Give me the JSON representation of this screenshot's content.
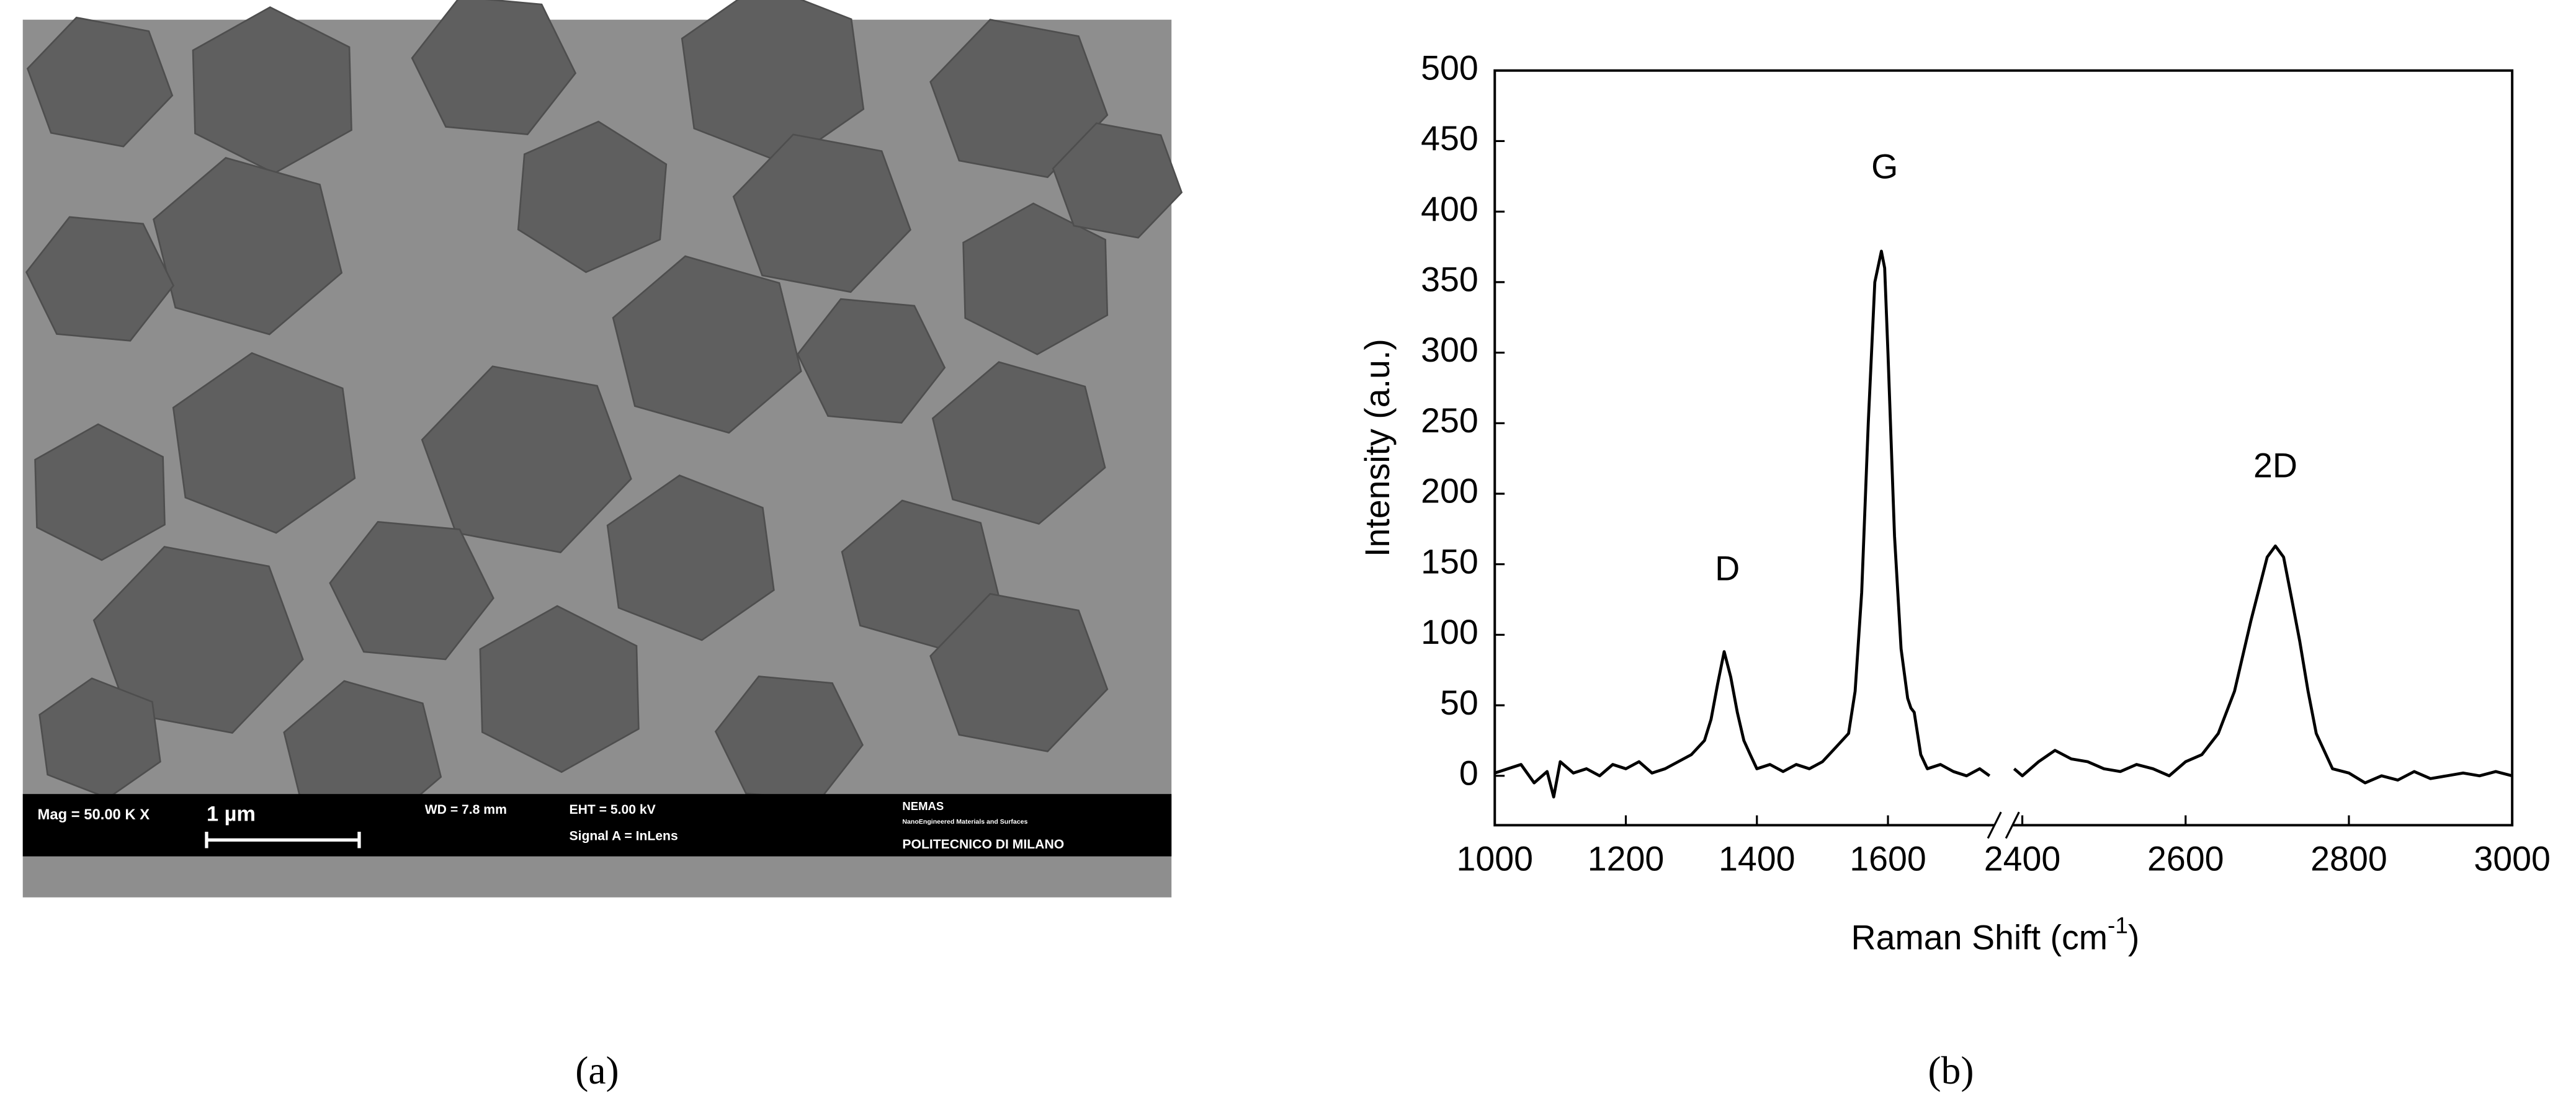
{
  "sem_image": {
    "info_bar": {
      "mag": "Mag = 50.00 K X",
      "scale": "1 µm",
      "wd": "WD = 7.8 mm",
      "eht": "EHT = 5.00 kV",
      "signal": "Signal A = InLens",
      "lab": "NEMAS",
      "lab_sub": "NanoEngineered Materials and Surfaces",
      "institution": "POLITECNICO DI MILANO"
    }
  },
  "captions": [
    "(a)",
    "(b)"
  ],
  "chart_data": {
    "type": "line",
    "xlabel": [
      "Raman Shift (cm",
      "-1",
      ")"
    ],
    "ylabel": "Intensity (a.u.)",
    "xlim": [
      1000,
      3000
    ],
    "xbreak": [
      1760,
      2390
    ],
    "ylim": [
      -35,
      500
    ],
    "xticks": [
      1000,
      1200,
      1400,
      1600,
      2400,
      2600,
      2800,
      3000
    ],
    "yticks": [
      0,
      50,
      100,
      150,
      200,
      250,
      300,
      350,
      400,
      450,
      500
    ],
    "color": "#000000",
    "x": [
      1000,
      1020,
      1040,
      1060,
      1080,
      1090,
      1100,
      1120,
      1140,
      1160,
      1180,
      1200,
      1220,
      1240,
      1260,
      1280,
      1300,
      1320,
      1330,
      1340,
      1350,
      1360,
      1370,
      1380,
      1390,
      1400,
      1420,
      1440,
      1460,
      1480,
      1500,
      1520,
      1540,
      1550,
      1560,
      1570,
      1580,
      1590,
      1595,
      1600,
      1610,
      1620,
      1630,
      1635,
      1640,
      1650,
      1660,
      1680,
      1700,
      1720,
      1740,
      1755,
      2000,
      2390,
      2400,
      2420,
      2440,
      2460,
      2480,
      2500,
      2520,
      2540,
      2560,
      2580,
      2600,
      2620,
      2640,
      2660,
      2680,
      2700,
      2710,
      2720,
      2730,
      2740,
      2750,
      2760,
      2780,
      2800,
      2820,
      2840,
      2860,
      2880,
      2900,
      2920,
      2940,
      2960,
      2980,
      3000
    ],
    "values": [
      2,
      5,
      8,
      -5,
      3,
      -15,
      10,
      2,
      5,
      0,
      8,
      5,
      10,
      2,
      5,
      10,
      15,
      25,
      40,
      65,
      88,
      70,
      45,
      25,
      15,
      5,
      8,
      3,
      8,
      5,
      10,
      20,
      30,
      60,
      130,
      250,
      350,
      372,
      360,
      300,
      170,
      90,
      55,
      48,
      45,
      15,
      5,
      8,
      3,
      0,
      5,
      0,
      null,
      5,
      0,
      10,
      18,
      12,
      10,
      5,
      3,
      8,
      5,
      0,
      10,
      15,
      30,
      60,
      110,
      155,
      163,
      155,
      125,
      95,
      60,
      30,
      5,
      2,
      -5,
      0,
      -3,
      3,
      -2,
      0,
      2,
      0,
      3,
      0
    ],
    "annotations": [
      {
        "text": "D",
        "x": 1355,
        "y": 145
      },
      {
        "text": "G",
        "x": 1595,
        "y": 430
      },
      {
        "text": "2D",
        "x": 2710,
        "y": 218
      }
    ]
  }
}
